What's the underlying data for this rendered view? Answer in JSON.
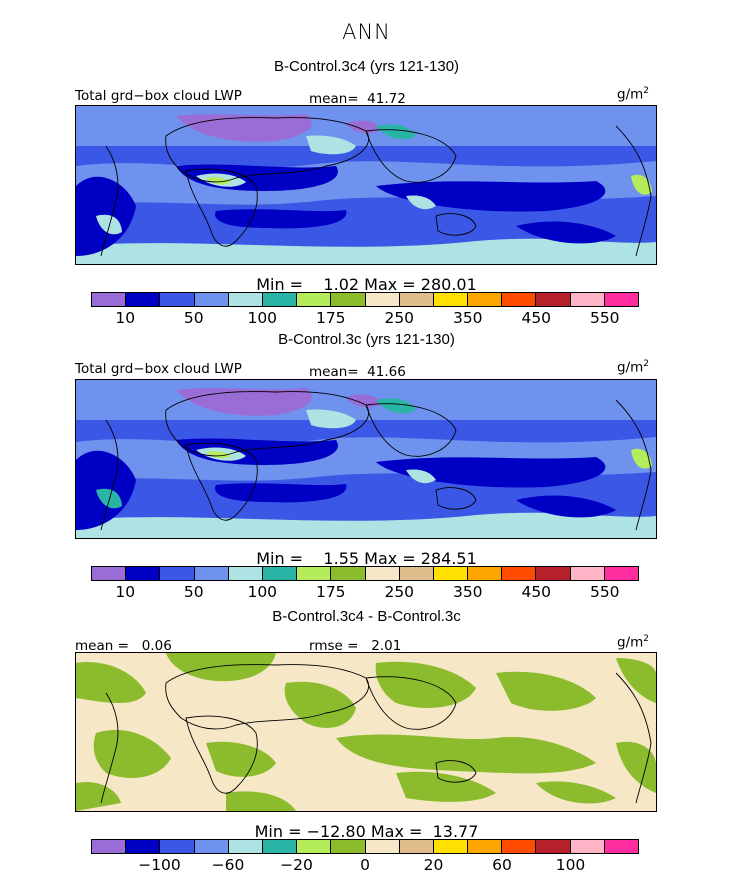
{
  "main_title": "ANN",
  "colors": {
    "palette": [
      "#9a6cd6",
      "#0000c4",
      "#3b57e6",
      "#6f92ee",
      "#ade3e3",
      "#2ab4a6",
      "#b5ec5c",
      "#8cbc2e",
      "#f6e8c6",
      "#dfbd8d",
      "#ffe000",
      "#ffa500",
      "#ff4c00",
      "#b5202a",
      "#ffb4c8",
      "#ff2ea0"
    ],
    "land_outline": "#000000"
  },
  "panels": [
    {
      "title": "B-Control.3c4 (yrs 121-130)",
      "left_label": "Total grd−box cloud LWP",
      "center_label": "mean=  41.72",
      "units": "g/m",
      "units_sup": "2",
      "stats": "Min =    1.02 Max = 280.01",
      "ticks": [
        "10",
        "50",
        "100",
        "175",
        "250",
        "350",
        "450",
        "550"
      ]
    },
    {
      "title": "B-Control.3c (yrs 121-130)",
      "left_label": "Total grd−box cloud LWP",
      "center_label": "mean=  41.66",
      "units": "g/m",
      "units_sup": "2",
      "stats": "Min =    1.55 Max = 284.51",
      "ticks": [
        "10",
        "50",
        "100",
        "175",
        "250",
        "350",
        "450",
        "550"
      ]
    },
    {
      "title": "B-Control.3c4 - B-Control.3c",
      "left_label": "mean =   0.06",
      "center_label": "rmse =   2.01",
      "units": "g/m",
      "units_sup": "2",
      "stats": "Min = −12.80 Max =  13.77",
      "ticks": [
        "−100",
        "−60",
        "−20",
        "0",
        "20",
        "60",
        "100"
      ]
    }
  ],
  "chart_data": [
    {
      "type": "heatmap",
      "title": "B-Control.3c4 (yrs 121-130)",
      "field": "Total grd-box cloud LWP",
      "units": "g/m2",
      "mean": 41.72,
      "min": 1.02,
      "max": 280.01,
      "contour_levels": [
        10,
        25,
        50,
        75,
        100,
        125,
        150,
        175,
        200,
        250,
        300,
        350,
        400,
        450,
        500,
        550
      ],
      "colorbar_labels": [
        10,
        50,
        100,
        175,
        250,
        350,
        450,
        550
      ]
    },
    {
      "type": "heatmap",
      "title": "B-Control.3c (yrs 121-130)",
      "field": "Total grd-box cloud LWP",
      "units": "g/m2",
      "mean": 41.66,
      "min": 1.55,
      "max": 284.51,
      "contour_levels": [
        10,
        25,
        50,
        75,
        100,
        125,
        150,
        175,
        200,
        250,
        300,
        350,
        400,
        450,
        500,
        550
      ],
      "colorbar_labels": [
        10,
        50,
        100,
        175,
        250,
        350,
        450,
        550
      ]
    },
    {
      "type": "heatmap",
      "title": "B-Control.3c4 - B-Control.3c",
      "units": "g/m2",
      "mean": 0.06,
      "rmse": 2.01,
      "min": -12.8,
      "max": 13.77,
      "contour_levels": [
        -140,
        -120,
        -100,
        -80,
        -60,
        -40,
        -20,
        -10,
        0,
        10,
        20,
        40,
        60,
        80,
        100,
        120
      ],
      "colorbar_labels": [
        -100,
        -60,
        -20,
        0,
        20,
        60,
        100
      ]
    }
  ]
}
